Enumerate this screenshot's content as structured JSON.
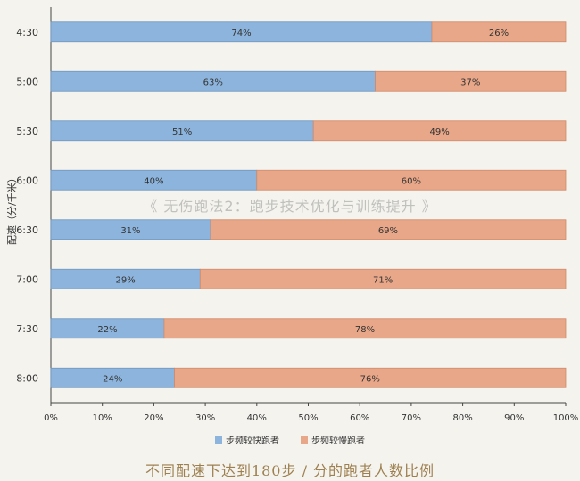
{
  "chart_data": {
    "type": "bar",
    "orientation": "horizontal",
    "stacked": true,
    "categories": [
      "4:30",
      "5:00",
      "5:30",
      "6:00",
      "6:30",
      "7:00",
      "7:30",
      "8:00"
    ],
    "series": [
      {
        "name": "步频较快跑者",
        "values": [
          74,
          63,
          51,
          40,
          31,
          29,
          22,
          24
        ]
      },
      {
        "name": "步频较慢跑者",
        "values": [
          26,
          37,
          49,
          60,
          69,
          71,
          78,
          76
        ]
      }
    ],
    "xlim": [
      0,
      100
    ],
    "xticks": [
      "0%",
      "10%",
      "20%",
      "30%",
      "40%",
      "50%",
      "60%",
      "70%",
      "80%",
      "90%",
      "100%"
    ],
    "ylabel": "配速（分/千米）",
    "legend_position": "bottom",
    "colors": {
      "fast": "#8db4dc",
      "slow": "#e8a788"
    }
  },
  "watermark": "《 无伤跑法2：跑步技术优化与训练提升 》",
  "caption": "不同配速下达到180步 / 分的跑者人数比例"
}
